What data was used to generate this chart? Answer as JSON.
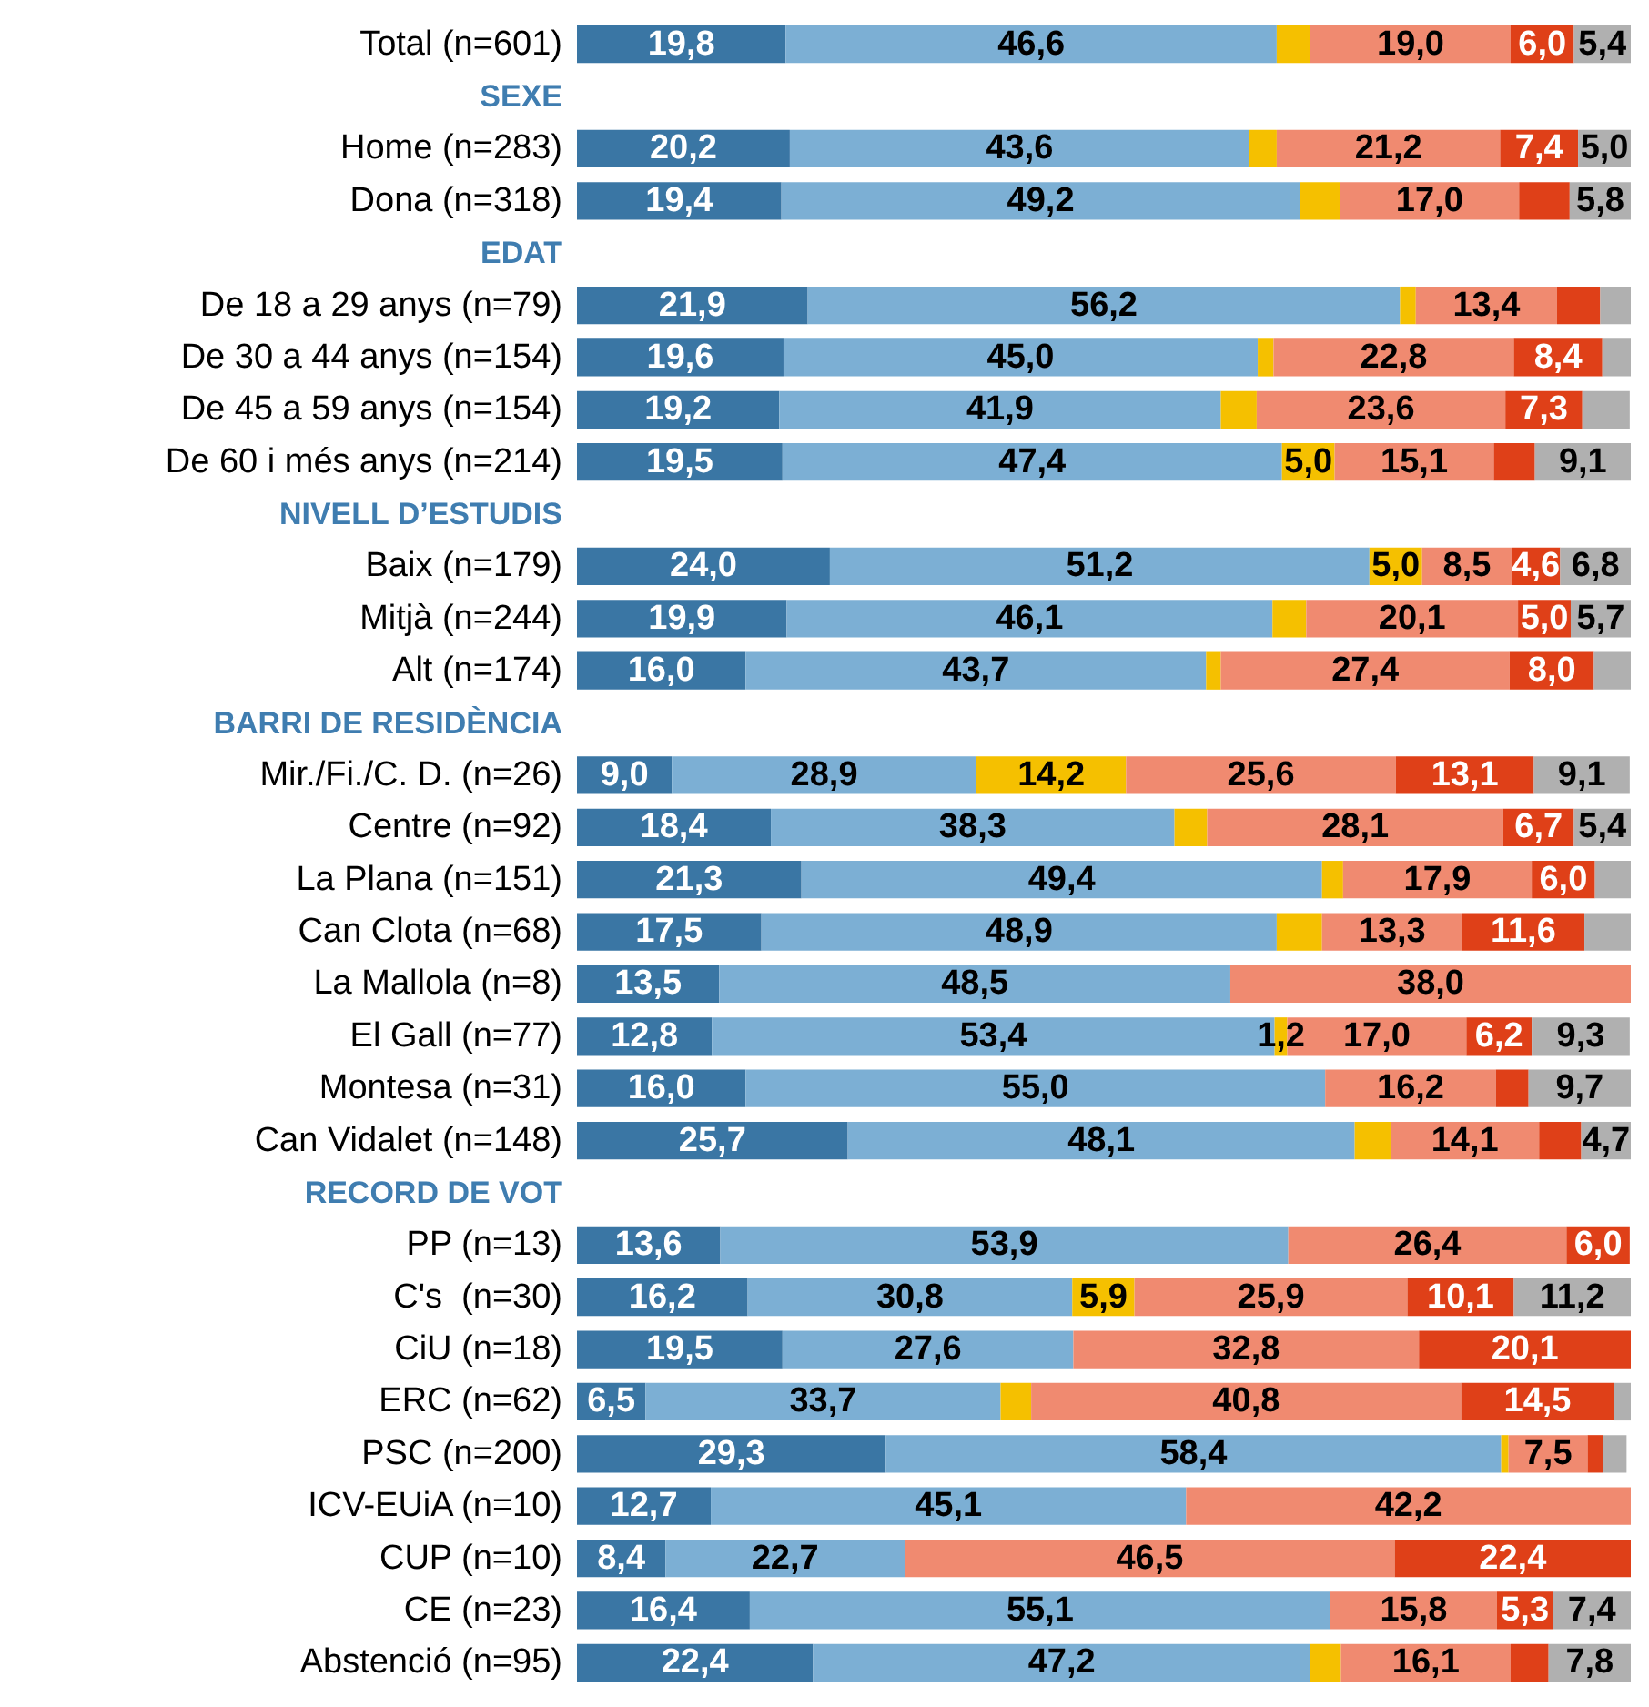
{
  "chart_data": {
    "type": "bar",
    "orientation": "horizontal",
    "stacked": true,
    "xlim": [
      0,
      100
    ],
    "tick_labels": "y",
    "categories": [
      "Total (n=601)",
      "SEXE",
      "Home (n=283)",
      "Dona (n=318)",
      "EDAT",
      "De 18 a 29 anys (n=79)",
      "De 30 a 44 anys (n=154)",
      "De 45 a 59 anys (n=154)",
      "De 60 i més anys (n=214)",
      "NIVELL D’ESTUDIS",
      "Baix (n=179)",
      "Mitjà (n=244)",
      "Alt (n=174)",
      "BARRI DE RESIDÈNCIA",
      "Mir./Fi./C. D. (n=26)",
      "Centre (n=92)",
      "La Plana (n=151)",
      "Can Clota (n=68)",
      "La Mallola (n=8)",
      "El Gall (n=77)",
      "Montesa (n=31)",
      "Can Vidalet (n=148)",
      "RECORD DE VOT",
      "PP (n=13)",
      "C's  (n=30)",
      "CiU (n=18)",
      "ERC (n=62)",
      "PSC (n=200)",
      "ICV-EUiA (n=10)",
      "CUP (n=10)",
      "CE (n=23)",
      "Abstenció (n=95)"
    ],
    "series": [
      {
        "color": "#3a76a4",
        "values": [
          19.8,
          null,
          20.2,
          19.4,
          null,
          21.9,
          19.6,
          19.2,
          19.5,
          null,
          24.0,
          19.9,
          16.0,
          null,
          9.0,
          18.4,
          21.3,
          17.5,
          13.5,
          12.8,
          16.0,
          25.7,
          null,
          13.6,
          16.2,
          19.5,
          6.5,
          29.3,
          12.7,
          8.4,
          16.4,
          22.4
        ],
        "value_labels": [
          "19,8",
          null,
          "20,2",
          "19,4",
          null,
          "21,9",
          "19,6",
          "19,2",
          "19,5",
          null,
          "24,0",
          "19,9",
          "16,0",
          null,
          "9,0",
          "18,4",
          "21,3",
          "17,5",
          "13,5",
          "12,8",
          "16,0",
          "25,7",
          null,
          "13,6",
          "16,2",
          "19,5",
          "6,5",
          "29,3",
          "12,7",
          "8,4",
          "16,4",
          "22,4"
        ]
      },
      {
        "color": "#7cafd4",
        "values": [
          46.6,
          null,
          43.6,
          49.2,
          null,
          56.2,
          45.0,
          41.9,
          47.4,
          null,
          51.2,
          46.1,
          43.7,
          null,
          28.9,
          38.3,
          49.4,
          48.9,
          48.5,
          53.4,
          55.0,
          48.1,
          null,
          53.9,
          30.8,
          27.6,
          33.7,
          58.4,
          45.1,
          22.7,
          55.1,
          47.2
        ],
        "value_labels": [
          "46,6",
          null,
          "43,6",
          "49,2",
          null,
          "56,2",
          "45,0",
          "41,9",
          "47,4",
          null,
          "51,2",
          "46,1",
          "43,7",
          null,
          "28,9",
          "38,3",
          "49,4",
          "48,9",
          "48,5",
          "53,4",
          "55,0",
          "48,1",
          null,
          "53,9",
          "30,8",
          "27,6",
          "33,7",
          "58,4",
          "45,1",
          "22,7",
          "55,1",
          "47,2"
        ]
      },
      {
        "color": "#f5c000",
        "values": [
          3.2,
          null,
          2.6,
          3.8,
          null,
          1.5,
          1.5,
          3.4,
          5.0,
          null,
          5.0,
          3.2,
          1.4,
          null,
          14.2,
          3.1,
          2.0,
          4.3,
          null,
          1.2,
          null,
          3.4,
          null,
          null,
          5.9,
          null,
          2.9,
          0.7,
          null,
          null,
          null,
          2.9
        ],
        "value_labels": [
          null,
          null,
          null,
          null,
          null,
          null,
          null,
          null,
          "5,0",
          null,
          "5,0",
          null,
          null,
          null,
          "14,2",
          null,
          null,
          null,
          null,
          "1,2",
          null,
          null,
          null,
          null,
          "5,9",
          null,
          null,
          null,
          null,
          null,
          null,
          null
        ]
      },
      {
        "color": "#f08a70",
        "values": [
          19.0,
          null,
          21.2,
          17.0,
          null,
          13.4,
          22.8,
          23.6,
          15.1,
          null,
          8.5,
          20.1,
          27.4,
          null,
          25.6,
          28.1,
          17.9,
          13.3,
          38.0,
          17.0,
          16.2,
          14.1,
          null,
          26.4,
          25.9,
          32.8,
          40.8,
          7.5,
          42.2,
          46.5,
          15.8,
          16.1
        ],
        "value_labels": [
          "19,0",
          null,
          "21,2",
          "17,0",
          null,
          "13,4",
          "22,8",
          "23,6",
          "15,1",
          null,
          "8,5",
          "20,1",
          "27,4",
          null,
          "25,6",
          "28,1",
          "17,9",
          "13,3",
          "38,0",
          "17,0",
          "16,2",
          "14,1",
          null,
          "26,4",
          "25,9",
          "32,8",
          "40,8",
          "7,5",
          "42,2",
          "46,5",
          "15,8",
          "16,1"
        ]
      },
      {
        "color": "#df4018",
        "values": [
          6.0,
          null,
          7.4,
          4.8,
          null,
          4.1,
          8.4,
          7.3,
          3.9,
          null,
          4.6,
          5.0,
          8.0,
          null,
          13.1,
          6.7,
          6.0,
          11.6,
          null,
          6.2,
          3.1,
          4.0,
          null,
          6.0,
          10.1,
          20.1,
          14.5,
          1.5,
          null,
          22.4,
          5.3,
          3.6
        ],
        "value_labels": [
          "6,0",
          null,
          "7,4",
          null,
          null,
          null,
          "8,4",
          "7,3",
          null,
          null,
          "4,6",
          "5,0",
          "8,0",
          null,
          "13,1",
          "6,7",
          "6,0",
          "11,6",
          null,
          "6,2",
          null,
          null,
          null,
          "6,0",
          "10,1",
          "20,1",
          "14,5",
          null,
          null,
          "22,4",
          "5,3",
          null
        ]
      },
      {
        "color": "#b0b0b0",
        "values": [
          5.4,
          null,
          5.0,
          5.8,
          null,
          2.9,
          2.7,
          4.5,
          9.1,
          null,
          6.8,
          5.7,
          3.5,
          null,
          9.1,
          5.4,
          3.4,
          4.4,
          null,
          9.3,
          9.7,
          4.7,
          null,
          null,
          11.2,
          null,
          1.6,
          2.2,
          null,
          null,
          7.4,
          7.8
        ],
        "value_labels": [
          "5,4",
          null,
          "5,0",
          "5,8",
          null,
          null,
          null,
          null,
          "9,1",
          null,
          "6,8",
          "5,7",
          null,
          null,
          "9,1",
          "5,4",
          null,
          null,
          null,
          "9,3",
          "9,7",
          "4,7",
          null,
          null,
          "11,2",
          null,
          null,
          null,
          null,
          null,
          "7,4",
          "7,8"
        ]
      }
    ]
  }
}
